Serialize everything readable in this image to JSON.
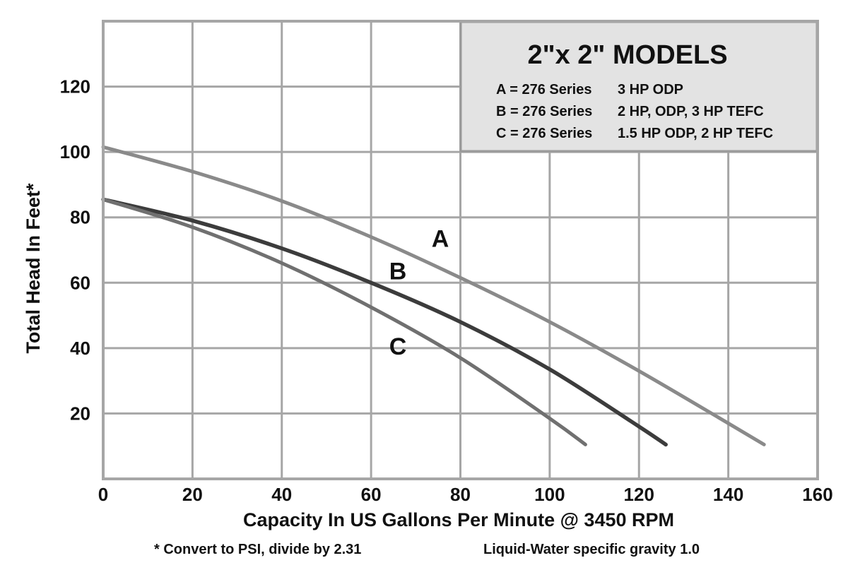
{
  "chart_data": {
    "type": "line",
    "title": "2\"x 2\" MODELS",
    "xlabel": "Capacity In US Gallons Per Minute @ 3450 RPM",
    "ylabel": "Total Head In Feet*",
    "xlim": [
      0,
      160
    ],
    "ylim": [
      0,
      140
    ],
    "x_ticks": [
      "0",
      "20",
      "40",
      "60",
      "80",
      "100",
      "120",
      "140",
      "160"
    ],
    "y_ticks": [
      "20",
      "40",
      "60",
      "80",
      "100",
      "120"
    ],
    "grid": true,
    "legend_position": "top-right",
    "legend": [
      {
        "key": "A",
        "text": "A = 276 Series",
        "detail": "3 HP ODP"
      },
      {
        "key": "B",
        "text": "B = 276 Series",
        "detail": "2 HP, ODP, 3 HP TEFC"
      },
      {
        "key": "C",
        "text": "C = 276 Series",
        "detail": "1.5 HP ODP, 2 HP TEFC"
      }
    ],
    "series": [
      {
        "name": "A",
        "color": "#8a8a8a",
        "x": [
          0,
          20,
          40,
          60,
          80,
          100,
          120,
          140,
          148
        ],
        "y": [
          101.5,
          94,
          85,
          74,
          61.5,
          48,
          33,
          17,
          10.5
        ]
      },
      {
        "name": "B",
        "color": "#3c3c3c",
        "x": [
          0,
          20,
          40,
          60,
          80,
          100,
          120,
          126
        ],
        "y": [
          85.5,
          79,
          70.5,
          60,
          48,
          33.5,
          16,
          10.5
        ]
      },
      {
        "name": "C",
        "color": "#707070",
        "x": [
          0,
          20,
          40,
          60,
          80,
          100,
          108
        ],
        "y": [
          85.5,
          77,
          66,
          52.5,
          37,
          18.5,
          10.5
        ]
      }
    ],
    "notes": {
      "left": "* Convert to PSI, divide by 2.31",
      "right": "Liquid-Water specific gravity 1.0"
    }
  }
}
